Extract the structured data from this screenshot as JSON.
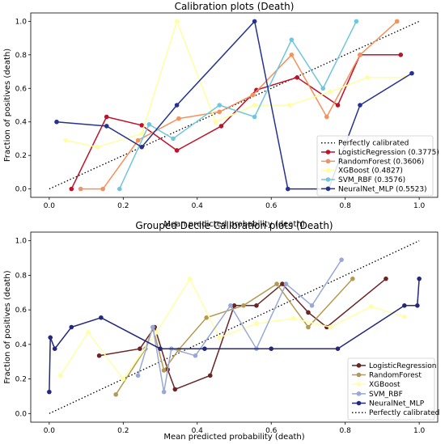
{
  "chart_data": [
    {
      "type": "line",
      "title": "Calibration plots (Death)",
      "xlabel": "Mean predicted probability (death)",
      "ylabel": "Fraction of positives (death)",
      "xlim": [
        -0.05,
        1.05
      ],
      "ylim": [
        -0.05,
        1.05
      ],
      "xticks": [
        "0.0",
        "0.2",
        "0.4",
        "0.6",
        "0.8",
        "1.0"
      ],
      "yticks": [
        "0.0",
        "0.2",
        "0.4",
        "0.6",
        "0.8",
        "1.0"
      ],
      "grid": false,
      "legend_position": "lower-right",
      "reference": {
        "name": "Perfectly calibrated",
        "x": [
          0,
          1
        ],
        "y": [
          0,
          1
        ],
        "color": "#000000",
        "style": "dotted"
      },
      "legend_order": [
        "ref",
        "LogisticRegression (0.3775)",
        "RandomForest (0.3606)",
        "XGBoost (0.4827)",
        "SVM_RBF (0.3576)",
        "NeuralNet_MLP (0.5523)"
      ],
      "series": [
        {
          "name": "LogisticRegression (0.3775)",
          "color": "#c0102a",
          "x": [
            0.06,
            0.155,
            0.25,
            0.345,
            0.465,
            0.56,
            0.67,
            0.78,
            0.84,
            0.95
          ],
          "y": [
            0.0,
            0.43,
            0.38,
            0.23,
            0.375,
            0.59,
            0.665,
            0.5,
            0.8,
            0.8
          ]
        },
        {
          "name": "RandomForest (0.3606)",
          "color": "#f4915c",
          "x": [
            0.085,
            0.145,
            0.24,
            0.35,
            0.46,
            0.55,
            0.655,
            0.75,
            0.84,
            0.94
          ],
          "y": [
            0.0,
            0.0,
            0.29,
            0.42,
            0.46,
            0.56,
            0.8,
            0.43,
            0.8,
            1.0
          ]
        },
        {
          "name": "XGBoost (0.4827)",
          "color": "#ffffa0",
          "x": [
            0.045,
            0.13,
            0.25,
            0.345,
            0.45,
            0.555,
            0.65,
            0.76,
            0.86,
            0.96
          ],
          "y": [
            0.29,
            0.25,
            0.33,
            1.0,
            0.4,
            0.5,
            0.5,
            0.58,
            0.665,
            0.665
          ]
        },
        {
          "name": "SVM_RBF (0.3576)",
          "color": "#70c6dc",
          "x": [
            0.19,
            0.27,
            0.335,
            0.46,
            0.555,
            0.655,
            0.74,
            0.83
          ],
          "y": [
            0.0,
            0.385,
            0.3,
            0.5,
            0.43,
            0.89,
            0.6,
            1.0
          ]
        },
        {
          "name": "NeuralNet_MLP (0.5523)",
          "color": "#26328f",
          "x": [
            0.02,
            0.155,
            0.25,
            0.345,
            0.555,
            0.645,
            0.755,
            0.84,
            0.98
          ],
          "y": [
            0.4,
            0.375,
            0.25,
            0.5,
            1.0,
            0.0,
            0.0,
            0.5,
            0.69
          ]
        }
      ]
    },
    {
      "type": "line",
      "title": "Grouped Decile Calibration plots (Death)",
      "xlabel": "Mean predicted probability (death)",
      "ylabel": "Fraction of positives (death)",
      "xlim": [
        -0.05,
        1.05
      ],
      "ylim": [
        -0.05,
        1.05
      ],
      "xticks": [
        "0.0",
        "0.2",
        "0.4",
        "0.6",
        "0.8",
        "1.0"
      ],
      "yticks": [
        "0.0",
        "0.2",
        "0.4",
        "0.6",
        "0.8",
        "1.0"
      ],
      "grid": false,
      "legend_position": "lower-right",
      "reference": {
        "name": "Perfectly calibrated",
        "x": [
          0,
          1
        ],
        "y": [
          0,
          1
        ],
        "color": "#000000",
        "style": "dotted"
      },
      "legend_order": [
        "LogisticRegression",
        "RandomForest",
        "XGBoost",
        "SVM_RBF",
        "NeuralNet_MLP",
        "ref"
      ],
      "series": [
        {
          "name": "LogisticRegression",
          "color": "#6b2424",
          "x": [
            0.135,
            0.245,
            0.285,
            0.32,
            0.34,
            0.435,
            0.5,
            0.56,
            0.63,
            0.7,
            0.75,
            0.91
          ],
          "y": [
            0.335,
            0.375,
            0.5,
            0.255,
            0.14,
            0.22,
            0.625,
            0.625,
            0.75,
            0.585,
            0.5,
            0.78
          ]
        },
        {
          "name": "RandomForest",
          "color": "#b39a50",
          "x": [
            0.18,
            0.26,
            0.28,
            0.31,
            0.35,
            0.425,
            0.525,
            0.615,
            0.7,
            0.82
          ],
          "y": [
            0.11,
            0.375,
            0.5,
            0.25,
            0.37,
            0.555,
            0.625,
            0.75,
            0.5,
            0.78
          ]
        },
        {
          "name": "XGBoost",
          "color": "#ffffa8",
          "x": [
            0.03,
            0.105,
            0.2,
            0.29,
            0.38,
            0.46,
            0.56,
            0.66,
            0.76,
            0.87,
            0.96
          ],
          "y": [
            0.22,
            0.47,
            0.2,
            0.47,
            0.78,
            0.44,
            0.52,
            0.55,
            0.5,
            0.62,
            0.56
          ]
        },
        {
          "name": "SVM_RBF",
          "color": "#98a8d8",
          "x": [
            0.24,
            0.28,
            0.31,
            0.33,
            0.395,
            0.49,
            0.56,
            0.64,
            0.71,
            0.79
          ],
          "y": [
            0.22,
            0.5,
            0.125,
            0.375,
            0.335,
            0.625,
            0.375,
            0.75,
            0.625,
            0.89
          ]
        },
        {
          "name": "NeuralNet_MLP",
          "color": "#24287c",
          "x": [
            0.0,
            0.003,
            0.015,
            0.06,
            0.14,
            0.3,
            0.42,
            0.6,
            0.78,
            0.96,
            0.995,
            1.0
          ],
          "y": [
            0.125,
            0.44,
            0.375,
            0.5,
            0.555,
            0.375,
            0.375,
            0.375,
            0.375,
            0.625,
            0.625,
            0.78
          ]
        }
      ]
    }
  ]
}
